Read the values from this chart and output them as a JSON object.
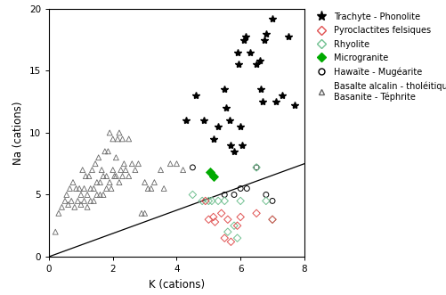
{
  "title": "",
  "xlabel": "K (cations)",
  "ylabel": "Na (cations)",
  "xlim": [
    0,
    8
  ],
  "ylim": [
    0,
    20
  ],
  "xticks": [
    0,
    2,
    4,
    6,
    8
  ],
  "yticks": [
    0,
    5,
    10,
    15,
    20
  ],
  "line_x": [
    0,
    8
  ],
  "line_y": [
    0,
    7.5
  ],
  "trachyte": {
    "x": [
      4.3,
      4.6,
      4.85,
      5.15,
      5.3,
      5.5,
      5.55,
      5.65,
      5.7,
      5.8,
      5.9,
      5.95,
      6.0,
      6.05,
      6.1,
      6.15,
      6.3,
      6.5,
      6.6,
      6.65,
      6.7,
      6.75,
      6.8,
      7.0,
      7.1,
      7.3,
      7.5,
      7.7
    ],
    "y": [
      11.0,
      13.0,
      11.0,
      9.5,
      10.5,
      13.5,
      12.0,
      11.0,
      9.0,
      8.5,
      16.5,
      15.5,
      10.5,
      9.0,
      17.5,
      17.8,
      16.5,
      15.5,
      15.8,
      13.5,
      12.5,
      17.5,
      18.0,
      19.2,
      12.5,
      13.0,
      17.8,
      12.2
    ],
    "color": "#000000",
    "marker": "*",
    "size": 40,
    "label": "Trachyte - Phonolite"
  },
  "pyroclastites": {
    "x": [
      4.9,
      5.0,
      5.15,
      5.2,
      5.4,
      5.5,
      5.6,
      5.7,
      5.9,
      6.0,
      6.5,
      7.0
    ],
    "y": [
      4.5,
      3.0,
      3.2,
      2.8,
      3.5,
      1.5,
      3.0,
      1.2,
      2.5,
      3.2,
      3.5,
      3.0
    ],
    "color": "#e05050",
    "marker": "D",
    "size": 18,
    "label": "Pyroclactites felsiques"
  },
  "rhyolite": {
    "x": [
      4.5,
      4.8,
      5.0,
      5.1,
      5.3,
      5.5,
      5.6,
      5.8,
      5.9,
      6.0,
      6.5,
      6.8,
      7.0
    ],
    "y": [
      5.0,
      4.5,
      4.5,
      4.5,
      4.5,
      4.5,
      2.0,
      2.5,
      1.5,
      4.5,
      7.2,
      4.5,
      3.0
    ],
    "color": "#70c070",
    "marker": "D",
    "size": 18,
    "label": "Rhyolite"
  },
  "microgranite": {
    "x": [
      5.05,
      5.15
    ],
    "y": [
      6.8,
      6.5
    ],
    "color": "#00aa00",
    "marker": "D",
    "size": 25,
    "label": "Microgranite",
    "filled": true
  },
  "hawaite": {
    "x": [
      4.5,
      5.5,
      5.8,
      6.0,
      6.2,
      6.5,
      6.8,
      7.0
    ],
    "y": [
      7.2,
      5.0,
      5.0,
      5.5,
      5.5,
      7.2,
      5.0,
      4.5
    ],
    "color": "#000000",
    "marker": "o",
    "size": 18,
    "label": "Hawaïte - Mugéarite"
  },
  "basalte": {
    "x": [
      0.2,
      0.3,
      0.4,
      0.5,
      0.55,
      0.6,
      0.65,
      0.7,
      0.75,
      0.8,
      0.85,
      0.9,
      0.95,
      1.0,
      1.0,
      1.05,
      1.1,
      1.1,
      1.15,
      1.2,
      1.2,
      1.25,
      1.3,
      1.3,
      1.35,
      1.4,
      1.4,
      1.45,
      1.5,
      1.5,
      1.55,
      1.6,
      1.6,
      1.65,
      1.7,
      1.7,
      1.75,
      1.8,
      1.8,
      1.85,
      1.9,
      1.9,
      1.95,
      2.0,
      2.0,
      2.05,
      2.1,
      2.1,
      2.15,
      2.2,
      2.2,
      2.25,
      2.3,
      2.3,
      2.35,
      2.4,
      2.5,
      2.5,
      2.6,
      2.7,
      2.8,
      3.0,
      3.2,
      3.5,
      3.8,
      4.0,
      4.2,
      3.3,
      3.6,
      3.0,
      2.9,
      3.1
    ],
    "y": [
      2.0,
      3.5,
      4.0,
      4.5,
      5.0,
      4.2,
      5.5,
      4.5,
      6.0,
      4.0,
      5.5,
      4.5,
      5.5,
      4.2,
      5.0,
      7.0,
      4.5,
      5.5,
      6.5,
      4.0,
      5.0,
      6.5,
      4.5,
      5.5,
      7.0,
      4.5,
      5.5,
      7.5,
      5.0,
      6.0,
      8.0,
      5.0,
      6.0,
      7.0,
      5.0,
      6.5,
      8.5,
      5.5,
      6.5,
      8.5,
      6.0,
      10.0,
      5.5,
      7.0,
      9.5,
      6.5,
      8.0,
      6.5,
      9.5,
      6.0,
      10.0,
      7.0,
      6.5,
      9.5,
      7.5,
      7.0,
      6.5,
      9.5,
      7.5,
      7.0,
      7.5,
      6.0,
      5.5,
      7.0,
      7.5,
      7.5,
      7.0,
      6.0,
      5.5,
      3.5,
      3.5,
      5.5
    ],
    "color": "#888888",
    "marker": "^",
    "size": 18,
    "label": "Basalte alcalin - tholéitique\nBasanite - Téphrite"
  },
  "legend_fontsize": 7.0,
  "axis_fontsize": 8.5
}
